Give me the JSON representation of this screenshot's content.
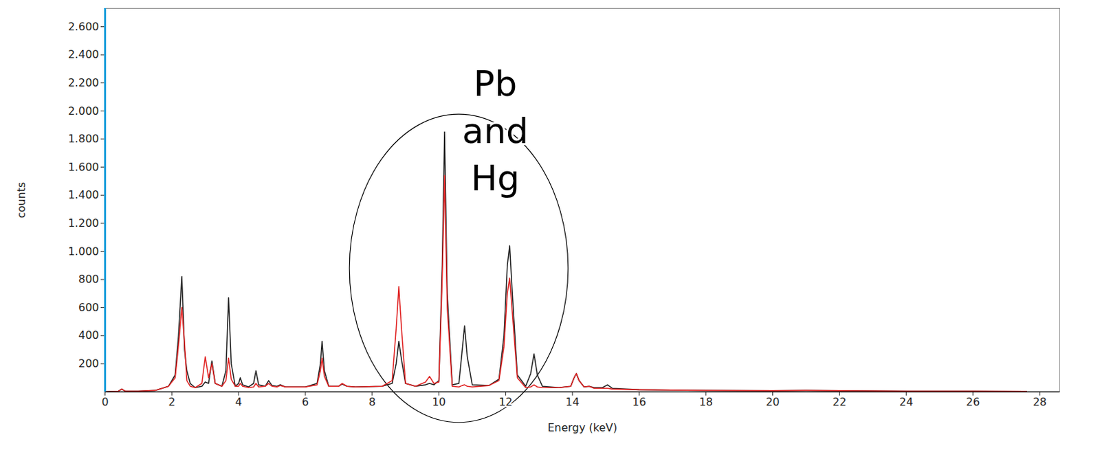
{
  "chart_data": {
    "type": "line",
    "x_label": "Energy (keV)",
    "y_label": "counts",
    "xlim": [
      0,
      28.6
    ],
    "ylim": [
      0,
      2730
    ],
    "xticks": [
      0,
      2,
      4,
      6,
      8,
      10,
      12,
      14,
      16,
      18,
      20,
      22,
      24,
      26,
      28
    ],
    "yticks": [
      200,
      400,
      600,
      800,
      {
        "value": 1000,
        "label": "1.000"
      },
      {
        "value": 1200,
        "label": "1.200"
      },
      {
        "value": 1400,
        "label": "1.400"
      },
      {
        "value": 1600,
        "label": "1.600"
      },
      {
        "value": 1800,
        "label": "1.800"
      },
      {
        "value": 2000,
        "label": "2.000"
      },
      {
        "value": 2200,
        "label": "2.200"
      },
      {
        "value": 2400,
        "label": "2.400"
      },
      {
        "value": 2600,
        "label": "2.600"
      }
    ],
    "grid": false,
    "x": [
      0,
      0.4,
      0.5,
      0.6,
      1.0,
      1.5,
      1.9,
      2.1,
      2.2,
      2.3,
      2.38,
      2.45,
      2.55,
      2.7,
      2.9,
      3.0,
      3.1,
      3.2,
      3.3,
      3.5,
      3.62,
      3.7,
      3.78,
      3.9,
      4.0,
      4.05,
      4.12,
      4.3,
      4.45,
      4.52,
      4.6,
      4.8,
      4.9,
      5.0,
      5.15,
      5.25,
      5.4,
      6.0,
      6.35,
      6.45,
      6.5,
      6.57,
      6.7,
      7.0,
      7.1,
      7.25,
      7.5,
      8.3,
      8.6,
      8.72,
      8.8,
      8.88,
      9.0,
      9.3,
      9.6,
      9.72,
      9.85,
      10.0,
      10.1,
      10.17,
      10.25,
      10.4,
      10.6,
      10.7,
      10.77,
      10.85,
      11.0,
      11.5,
      11.8,
      11.95,
      12.05,
      12.12,
      12.2,
      12.35,
      12.6,
      12.75,
      12.85,
      12.95,
      13.1,
      13.6,
      13.95,
      14.05,
      14.12,
      14.2,
      14.35,
      14.5,
      14.65,
      14.9,
      15.05,
      15.2,
      16,
      18,
      20,
      21,
      22,
      24,
      26,
      27.6
    ],
    "series": [
      {
        "color": "#222222",
        "values": [
          0,
          5,
          20,
          5,
          5,
          10,
          40,
          120,
          400,
          820,
          300,
          150,
          60,
          30,
          40,
          70,
          60,
          220,
          60,
          40,
          150,
          670,
          200,
          40,
          60,
          100,
          50,
          35,
          60,
          150,
          50,
          40,
          80,
          45,
          40,
          50,
          35,
          35,
          60,
          200,
          360,
          150,
          40,
          40,
          55,
          40,
          35,
          40,
          60,
          200,
          360,
          230,
          60,
          40,
          50,
          60,
          50,
          80,
          900,
          1850,
          700,
          50,
          60,
          300,
          470,
          250,
          50,
          45,
          90,
          400,
          900,
          1040,
          700,
          120,
          40,
          130,
          270,
          120,
          40,
          30,
          40,
          100,
          130,
          80,
          35,
          40,
          30,
          30,
          50,
          25,
          15,
          10,
          8,
          10,
          8,
          5,
          5,
          3
        ]
      },
      {
        "color": "#e02424",
        "values": [
          0,
          5,
          20,
          5,
          5,
          10,
          40,
          100,
          330,
          600,
          350,
          80,
          40,
          30,
          60,
          250,
          100,
          200,
          60,
          40,
          80,
          240,
          90,
          40,
          40,
          60,
          40,
          30,
          35,
          60,
          35,
          40,
          60,
          40,
          35,
          45,
          35,
          35,
          50,
          150,
          240,
          110,
          40,
          40,
          60,
          40,
          35,
          40,
          80,
          450,
          750,
          450,
          60,
          40,
          70,
          110,
          60,
          70,
          800,
          1540,
          600,
          40,
          35,
          45,
          50,
          40,
          35,
          45,
          80,
          320,
          700,
          810,
          560,
          100,
          30,
          35,
          50,
          35,
          30,
          30,
          40,
          100,
          130,
          80,
          35,
          40,
          25,
          25,
          25,
          20,
          15,
          10,
          8,
          10,
          8,
          5,
          5,
          3
        ]
      }
    ],
    "annotations": [
      {
        "text": "Pb and Hg",
        "x": 11.7,
        "y": 1853,
        "ellipse": {
          "x": [
            7.33,
            13.88
          ],
          "y": [
            -220,
            1975
          ]
        }
      }
    ]
  }
}
